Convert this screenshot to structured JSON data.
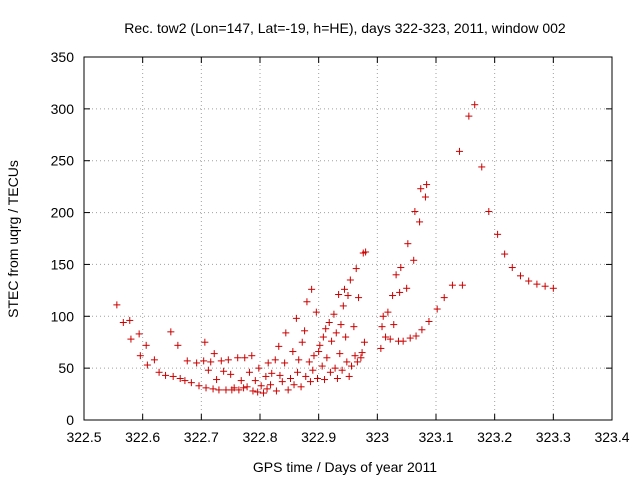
{
  "chart_data": {
    "type": "scatter",
    "title": "Rec. tow2 (Lon=147, Lat=-19, h=HE), days 322-323, 2011, window 002",
    "xlabel": "GPS time / Days of year 2011",
    "ylabel": "STEC from uqrg / TECUs",
    "xlim": [
      322.5,
      323.4
    ],
    "ylim": [
      0,
      350
    ],
    "x_ticks": [
      "322.5",
      "322.6",
      "322.7",
      "322.8",
      "322.9",
      "323",
      "323.1",
      "323.2",
      "323.3",
      "323.4"
    ],
    "y_ticks": [
      "0",
      "50",
      "100",
      "150",
      "200",
      "250",
      "300",
      "350"
    ],
    "grid": true,
    "marker": "+",
    "color": "#cc0000",
    "points": [
      [
        322.556,
        111
      ],
      [
        322.567,
        94
      ],
      [
        322.578,
        96
      ],
      [
        322.58,
        78
      ],
      [
        322.594,
        83
      ],
      [
        322.596,
        62
      ],
      [
        322.606,
        72
      ],
      [
        322.608,
        53
      ],
      [
        322.62,
        58
      ],
      [
        322.628,
        46
      ],
      [
        322.639,
        43
      ],
      [
        322.648,
        85
      ],
      [
        322.652,
        42
      ],
      [
        322.66,
        72
      ],
      [
        322.664,
        40
      ],
      [
        322.672,
        38
      ],
      [
        322.676,
        57
      ],
      [
        322.683,
        36
      ],
      [
        322.692,
        55
      ],
      [
        322.696,
        33
      ],
      [
        322.704,
        57
      ],
      [
        322.706,
        75
      ],
      [
        322.708,
        31
      ],
      [
        322.712,
        48
      ],
      [
        322.716,
        56
      ],
      [
        322.72,
        30
      ],
      [
        322.722,
        64
      ],
      [
        322.726,
        39
      ],
      [
        322.73,
        29
      ],
      [
        322.734,
        57
      ],
      [
        322.738,
        47
      ],
      [
        322.742,
        29
      ],
      [
        322.746,
        58
      ],
      [
        322.75,
        44
      ],
      [
        322.752,
        29
      ],
      [
        322.756,
        31
      ],
      [
        322.762,
        60
      ],
      [
        322.764,
        29
      ],
      [
        322.768,
        38
      ],
      [
        322.772,
        31
      ],
      [
        322.774,
        60
      ],
      [
        322.778,
        32
      ],
      [
        322.782,
        46
      ],
      [
        322.786,
        62
      ],
      [
        322.788,
        28
      ],
      [
        322.792,
        38
      ],
      [
        322.796,
        27
      ],
      [
        322.798,
        50
      ],
      [
        322.802,
        33
      ],
      [
        322.806,
        26
      ],
      [
        322.81,
        42
      ],
      [
        322.812,
        30
      ],
      [
        322.814,
        55
      ],
      [
        322.818,
        34
      ],
      [
        322.82,
        45
      ],
      [
        322.826,
        58
      ],
      [
        322.828,
        28
      ],
      [
        322.832,
        71
      ],
      [
        322.834,
        43
      ],
      [
        322.838,
        37
      ],
      [
        322.842,
        55
      ],
      [
        322.844,
        84
      ],
      [
        322.848,
        29
      ],
      [
        322.852,
        40
      ],
      [
        322.856,
        66
      ],
      [
        322.858,
        34
      ],
      [
        322.862,
        98
      ],
      [
        322.864,
        46
      ],
      [
        322.866,
        58
      ],
      [
        322.87,
        32
      ],
      [
        322.872,
        75
      ],
      [
        322.876,
        86
      ],
      [
        322.878,
        42
      ],
      [
        322.88,
        114
      ],
      [
        322.884,
        56
      ],
      [
        322.886,
        37
      ],
      [
        322.888,
        126
      ],
      [
        322.89,
        48
      ],
      [
        322.892,
        62
      ],
      [
        322.896,
        104
      ],
      [
        322.898,
        40
      ],
      [
        322.9,
        66
      ],
      [
        322.902,
        72
      ],
      [
        322.906,
        52
      ],
      [
        322.908,
        80
      ],
      [
        322.91,
        39
      ],
      [
        322.912,
        88
      ],
      [
        322.914,
        60
      ],
      [
        322.918,
        94
      ],
      [
        322.92,
        46
      ],
      [
        322.922,
        76
      ],
      [
        322.926,
        102
      ],
      [
        322.928,
        50
      ],
      [
        322.93,
        84
      ],
      [
        322.932,
        40
      ],
      [
        322.934,
        121
      ],
      [
        322.936,
        64
      ],
      [
        322.938,
        92
      ],
      [
        322.94,
        48
      ],
      [
        322.942,
        110
      ],
      [
        322.944,
        126
      ],
      [
        322.946,
        80
      ],
      [
        322.948,
        56
      ],
      [
        322.95,
        120
      ],
      [
        322.952,
        42
      ],
      [
        322.954,
        135
      ],
      [
        322.956,
        52
      ],
      [
        322.96,
        90
      ],
      [
        322.962,
        62
      ],
      [
        322.964,
        146
      ],
      [
        322.966,
        56
      ],
      [
        322.968,
        118
      ],
      [
        322.972,
        60
      ],
      [
        322.974,
        65
      ],
      [
        322.976,
        161
      ],
      [
        322.978,
        75
      ],
      [
        322.98,
        162
      ],
      [
        323.006,
        69
      ],
      [
        323.008,
        90
      ],
      [
        323.01,
        100
      ],
      [
        323.014,
        80
      ],
      [
        323.018,
        104
      ],
      [
        323.022,
        78
      ],
      [
        323.026,
        120
      ],
      [
        323.028,
        92
      ],
      [
        323.032,
        140
      ],
      [
        323.036,
        76
      ],
      [
        323.038,
        123
      ],
      [
        323.04,
        147
      ],
      [
        323.044,
        76
      ],
      [
        323.05,
        127
      ],
      [
        323.052,
        170
      ],
      [
        323.056,
        79
      ],
      [
        323.062,
        154
      ],
      [
        323.064,
        201
      ],
      [
        323.066,
        81
      ],
      [
        323.072,
        191
      ],
      [
        323.074,
        223
      ],
      [
        323.076,
        87
      ],
      [
        323.082,
        215
      ],
      [
        323.084,
        227
      ],
      [
        323.088,
        95
      ],
      [
        323.102,
        107
      ],
      [
        323.114,
        118
      ],
      [
        323.128,
        130
      ],
      [
        323.14,
        259
      ],
      [
        323.145,
        130
      ],
      [
        323.156,
        293
      ],
      [
        323.166,
        304
      ],
      [
        323.178,
        244
      ],
      [
        323.19,
        201
      ],
      [
        323.205,
        179
      ],
      [
        323.217,
        160
      ],
      [
        323.23,
        147
      ],
      [
        323.244,
        139
      ],
      [
        323.258,
        134
      ],
      [
        323.272,
        131
      ],
      [
        323.286,
        129
      ],
      [
        323.3,
        127
      ]
    ]
  }
}
